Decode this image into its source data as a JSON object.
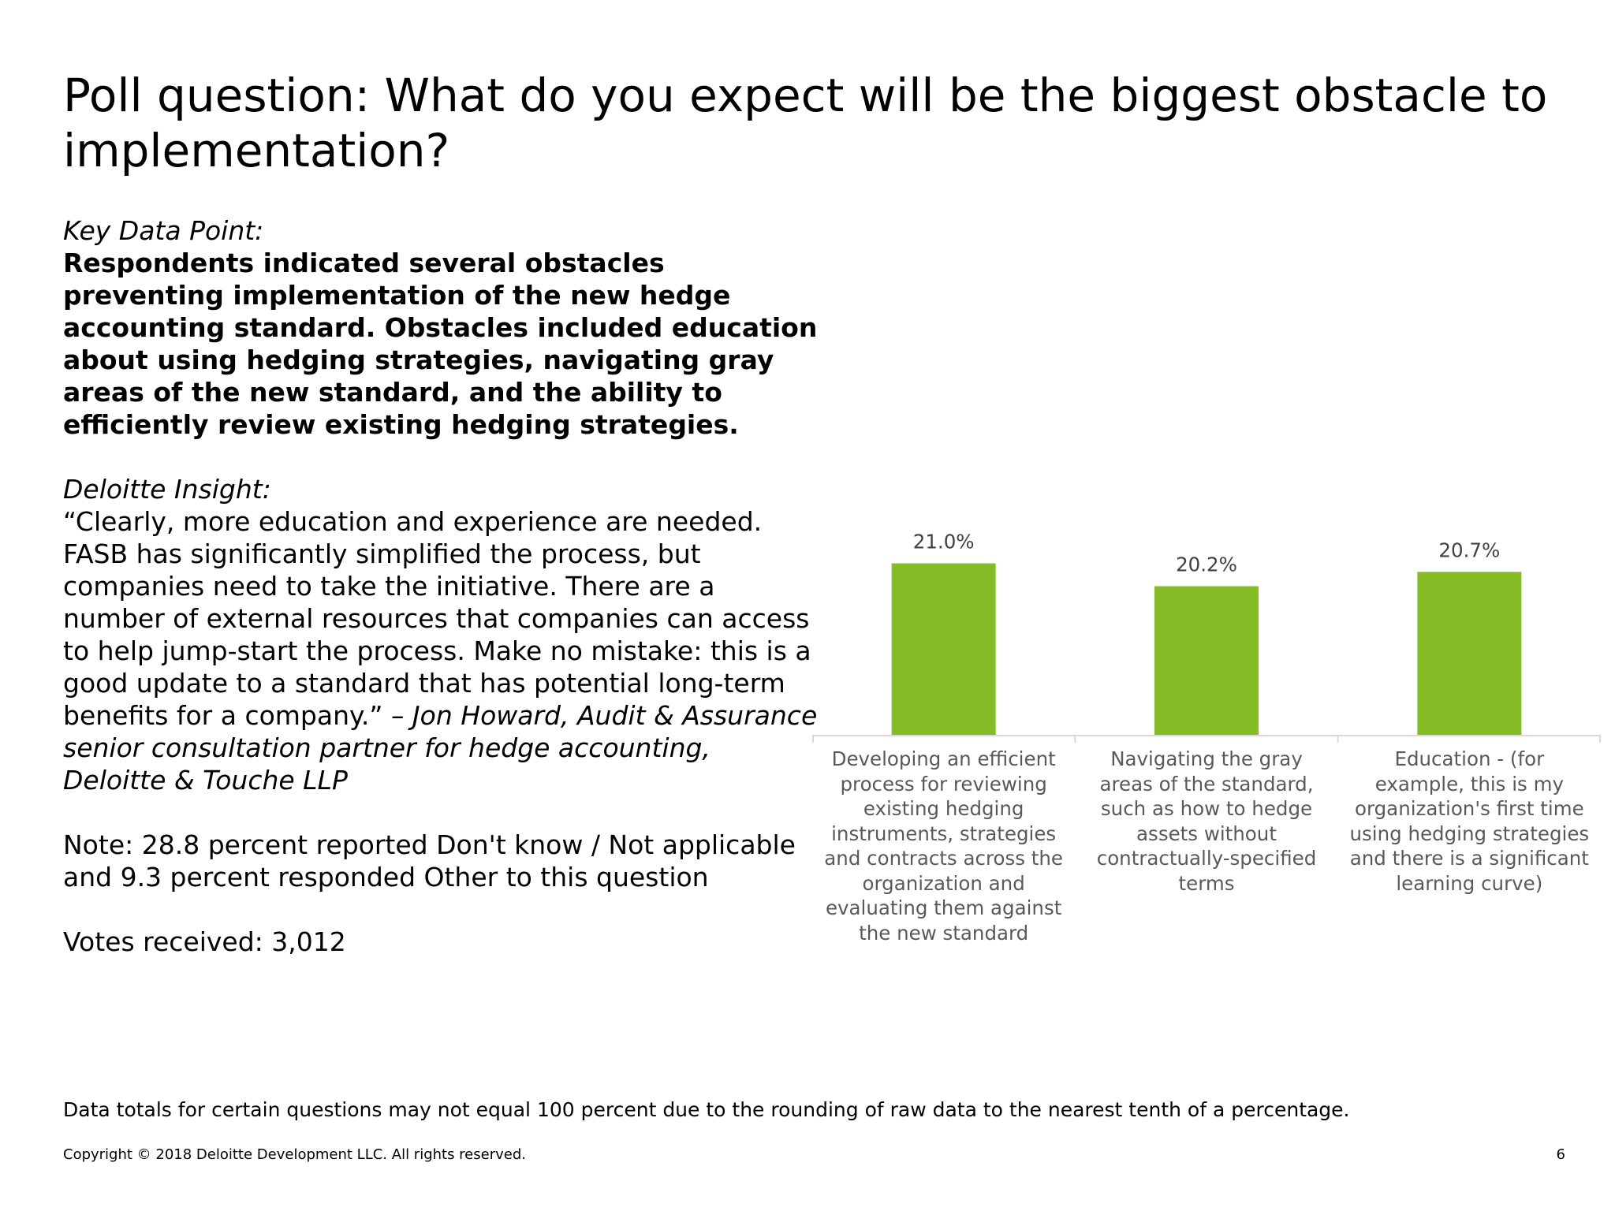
{
  "title": "Poll question: What do you expect will be the biggest obstacle to implementation?",
  "key_data": {
    "heading": "Key Data Point:",
    "text": "Respondents indicated several obstacles preventing implementation of the new hedge accounting standard. Obstacles included education about using hedging strategies, navigating gray areas of the new standard, and the ability to efficiently review existing hedging strategies."
  },
  "insight": {
    "heading": "Deloitte Insight:",
    "quote": "“Clearly, more education and experience are needed. FASB has significantly simplified the process, but companies need to take the initiative. There are a number of external resources that companies can access to help jump-start the process. Make no mistake: this is a good update to a standard that has potential long-term benefits for a company.”",
    "attribution": "– Jon Howard, Audit & Assurance senior consultation partner for hedge accounting, Deloitte & Touche LLP"
  },
  "note": "Note: 28.8 percent reported Don't know / Not applicable and 9.3 percent responded Other to this question",
  "votes": "Votes received: 3,012",
  "footnote": "Data totals for certain questions may not equal 100 percent due to the rounding of raw data to the nearest tenth of a percentage.",
  "copyright": "Copyright © 2018 Deloitte Development LLC. All rights reserved.",
  "page_number": "6",
  "colors": {
    "bar": "#86BC25",
    "axis": "#D9D9D9",
    "label": "#595959",
    "data_label": "#404040"
  },
  "chart_data": {
    "type": "bar",
    "categories": [
      "Developing an efficient process for reviewing existing hedging instruments, strategies and contracts across the organization and evaluating them against the new standard",
      "Navigating the gray areas of the standard, such as how to hedge assets without contractually-specified terms",
      "Education - (for example, this is my organization's first time using hedging strategies and there is a significant learning curve)"
    ],
    "category_lines": [
      [
        "Developing an efficient",
        "process for reviewing",
        "existing hedging",
        "instruments, strategies",
        "and contracts across the",
        "organization and",
        "evaluating them against",
        "the new standard"
      ],
      [
        "Navigating the gray",
        "areas of the standard,",
        "such as how to hedge",
        "assets without",
        "contractually-specified",
        "terms"
      ],
      [
        "Education - (for",
        "example, this is my",
        "organization's first time",
        "using hedging strategies",
        "and there is a significant",
        "learning curve)"
      ]
    ],
    "values": [
      21.0,
      20.2,
      20.7
    ],
    "data_labels": [
      "21.0%",
      "20.2%",
      "20.7%"
    ],
    "ylim": [
      15,
      21.4
    ],
    "grid": false,
    "legend": "none",
    "title": "",
    "xlabel": "",
    "ylabel": ""
  }
}
